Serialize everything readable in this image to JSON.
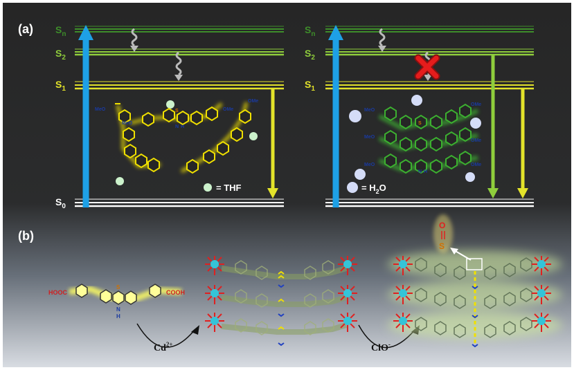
{
  "panel_a": {
    "label": "(a)",
    "levels": {
      "sn": {
        "main": "S",
        "sub": "n"
      },
      "s2": {
        "main": "S",
        "sub": "2"
      },
      "s1": {
        "main": "S",
        "sub": "1"
      },
      "s0": {
        "main": "S",
        "sub": "0"
      }
    },
    "left_molecule_labels": [
      "MeO",
      "OMe",
      "MeO",
      "OMe",
      "S",
      "N",
      "H"
    ],
    "right_molecule_labels": [
      "MeO",
      "OMe",
      "MeO",
      "OMe",
      "MeO",
      "OMe",
      "S",
      "N",
      "H"
    ],
    "legend_thf": "= THF",
    "legend_h2o": {
      "prefix": "= H",
      "sub": "2",
      "suffix": "O"
    }
  },
  "panel_b": {
    "label": "(b)",
    "monomer": {
      "left_group": "HOOC",
      "right_group": "COOH",
      "sulfur": "S",
      "nh": "N",
      "h": "H"
    },
    "step1": {
      "base": "Cd",
      "sup": "2+"
    },
    "step2": {
      "base": "ClO",
      "sup": "-"
    },
    "oxidized": {
      "oxygen": "O",
      "sulfur": "S"
    }
  },
  "colors": {
    "dark_bg": "#262626",
    "excitation_arrow": "#1ea0e6",
    "sn_line": "#3e8e2a",
    "s2_line": "#8fce3c",
    "s1_line": "#e3e32a",
    "s0_line": "#ffffff",
    "thf_dot": "#ccf2cc",
    "h2o_dot": "#d4dcf7",
    "yellow_mol": "#f0e000",
    "green_mol": "#3cb030",
    "quench_x": "#e51c1c",
    "cd_node": "#34c4d8",
    "o_bond": "#e02020"
  }
}
